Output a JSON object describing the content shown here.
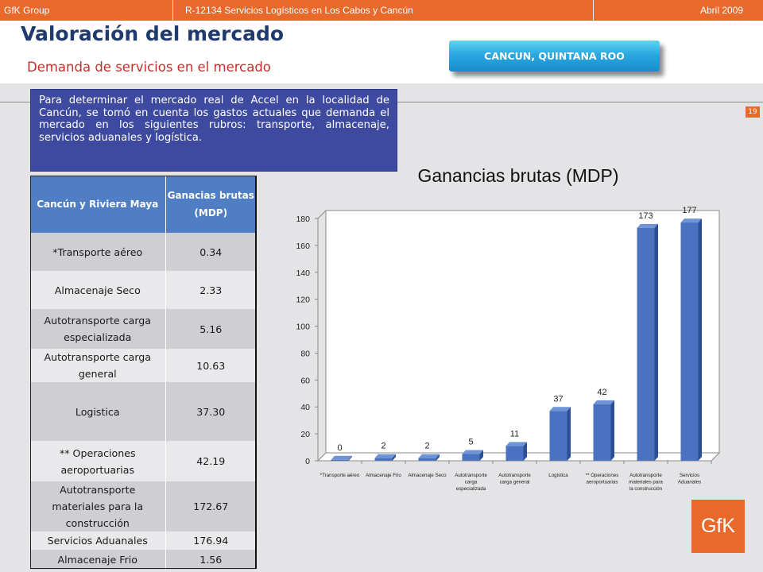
{
  "header": {
    "company": "GfK Group",
    "project": "R-12134 Servicios Logísticos en Los Cabos y Cancún",
    "date": "Abril 2009"
  },
  "title": "Valoración del mercado",
  "subtitle": "Demanda de servicios en el mercado",
  "location_button": "CANCUN, QUINTANA ROO",
  "page_number": "19",
  "info_text": "Para determinar el mercado real  de Accel en la localidad de  Cancún, se tomó en cuenta los gastos actuales que demanda el mercado en los siguientes rubros: transporte, almacenaje, servicios aduanales y logística.",
  "table": {
    "headers": [
      "Cancún y Riviera Maya",
      "Ganacias brutas (MDP)"
    ],
    "rows": [
      [
        "*Transporte aéreo",
        "0.34"
      ],
      [
        "Almacenaje Seco",
        "2.33"
      ],
      [
        "Autotransporte carga especializada",
        "5.16"
      ],
      [
        "Autotransporte carga general",
        "10.63"
      ],
      [
        "Logistica",
        "37.30"
      ],
      [
        "** Operaciones aeroportuarias",
        "42.19"
      ],
      [
        "Autotransporte materiales para la construcción",
        "172.67"
      ],
      [
        "Servicios Aduanales",
        "176.94"
      ],
      [
        "Almacenaje Frio",
        "1.56"
      ]
    ]
  },
  "chart_data": {
    "type": "bar",
    "title": "Ganancias brutas (MDP)",
    "categories": [
      "*Transporte aéreo",
      "Almacenaje Frio",
      "Almacenaje Seco",
      "Autotransporte carga especializada",
      "Autotransporte carga general",
      "Logistica",
      "** Operaciones aeroportuarias",
      "Autotransporte materiales para la construcción",
      "Servicios Aduanales"
    ],
    "values": [
      0,
      2,
      2,
      5,
      11,
      37,
      42,
      173,
      177
    ],
    "ylim": [
      0,
      180
    ],
    "yticks": [
      0,
      20,
      40,
      60,
      80,
      100,
      120,
      140,
      160,
      180
    ],
    "grid": false,
    "legend": "none",
    "bar_color": "#4a72c0"
  },
  "logo_text": "GfK",
  "colors": {
    "accent": "#e8692a",
    "title": "#1f3a6e",
    "subtitle": "#c0312b",
    "panel": "#3d4aa0"
  }
}
